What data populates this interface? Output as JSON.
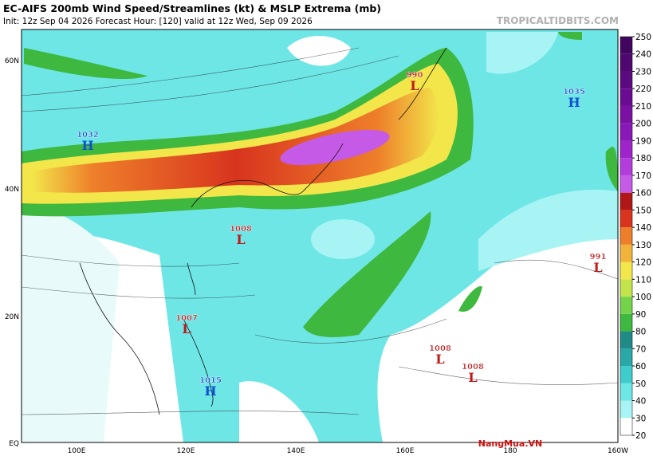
{
  "header": {
    "title": "EC-AIFS 200mb Wind Speed/Streamlines (kt) & MSLP Extrema (mb)",
    "subtitle": "Init: 12z Sep 04 2026   Forecast Hour: [120]   valid at 12z Wed, Sep 09 2026",
    "site": "TROPICALTIDBITS.COM"
  },
  "watermark": "NangMua.VN",
  "lat_labels": [
    "60N",
    "40N",
    "20N",
    "EQ"
  ],
  "lon_labels": [
    "100E",
    "120E",
    "140E",
    "160E",
    "180",
    "160W"
  ],
  "colorbar": {
    "ticks": [
      20,
      30,
      40,
      50,
      60,
      70,
      80,
      90,
      100,
      110,
      120,
      130,
      140,
      150,
      160,
      170,
      180,
      190,
      200,
      210,
      220,
      230,
      240,
      250
    ],
    "colors": [
      "#ffffff",
      "#a8f4f4",
      "#6ee6e6",
      "#3fcccc",
      "#2aa8a8",
      "#1f8a86",
      "#3fb83f",
      "#74d34a",
      "#c2e44a",
      "#f2e64a",
      "#f2b33a",
      "#ee7f2a",
      "#d8341e",
      "#b01818",
      "#c45ae6",
      "#b23cdc",
      "#9e24cc",
      "#8a18b8",
      "#7a10a4",
      "#6a0c92",
      "#5c0a80",
      "#4e0870",
      "#420660"
    ]
  },
  "centers": [
    {
      "value": 990,
      "type": "L"
    },
    {
      "value": 1035,
      "type": "H"
    },
    {
      "value": 1032,
      "type": "H"
    },
    {
      "value": 1008,
      "type": "L"
    },
    {
      "value": 991,
      "type": "L"
    },
    {
      "value": 1007,
      "type": "L"
    },
    {
      "value": 1008,
      "type": "L"
    },
    {
      "value": 1008,
      "type": "L"
    },
    {
      "value": 1015,
      "type": "H"
    }
  ]
}
